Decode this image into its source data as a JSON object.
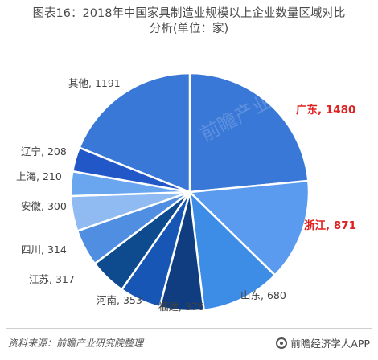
{
  "title_line1": "图表16：2018年中国家具制造业规模以上企业数量区域对比",
  "title_line2": "分析(单位：家)",
  "source": "资料来源：前瞻产业研究院整理",
  "brand": "前瞻经济学人APP",
  "watermark": "前瞻产业研究院",
  "colors": {
    "label_default": "#404040",
    "label_highlight": "#e02020"
  },
  "chart_data": {
    "type": "pie",
    "title": "图表16：2018年中国家具制造业规模以上企业数量区域对比分析(单位：家)",
    "unit": "家",
    "slices": [
      {
        "label": "广东",
        "value": 1480,
        "color": "#3a78d8",
        "highlight": true,
        "text": "广东, 1480"
      },
      {
        "label": "浙江",
        "value": 871,
        "color": "#5b9bef",
        "highlight": true,
        "text": "浙江, 871"
      },
      {
        "label": "山东",
        "value": 680,
        "color": "#3d8ce6",
        "highlight": false,
        "text": "山东, 680"
      },
      {
        "label": "福建",
        "value": 376,
        "color": "#0f3d80",
        "highlight": false,
        "text": "福建, 376"
      },
      {
        "label": "河南",
        "value": 353,
        "color": "#1856b5",
        "highlight": false,
        "text": "河南, 353"
      },
      {
        "label": "江苏",
        "value": 317,
        "color": "#0e4a8e",
        "highlight": false,
        "text": "江苏, 317"
      },
      {
        "label": "四川",
        "value": 314,
        "color": "#4f8ee0",
        "highlight": false,
        "text": "四川, 314"
      },
      {
        "label": "安徽",
        "value": 300,
        "color": "#8fbaf2",
        "highlight": false,
        "text": "安徽, 300"
      },
      {
        "label": "上海",
        "value": 210,
        "color": "#6aa6f0",
        "highlight": false,
        "text": "上海, 210"
      },
      {
        "label": "辽宁",
        "value": 208,
        "color": "#2257c8",
        "highlight": false,
        "text": "辽宁, 208"
      },
      {
        "label": "其他",
        "value": 1191,
        "color": "#3a78d8",
        "highlight": false,
        "text": "其他, 1191"
      }
    ]
  }
}
